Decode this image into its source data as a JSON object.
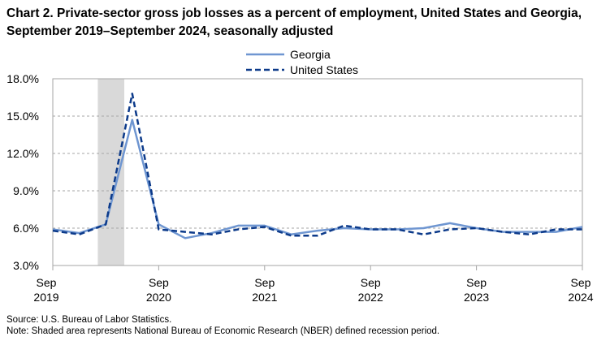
{
  "chart_data": {
    "type": "line",
    "title": "Chart 2. Private-sector gross job losses as a percent of employment, United States and Georgia, September 2019–September 2024, seasonally adjusted",
    "x": [
      "Sep 2019",
      "Dec 2019",
      "Mar 2020",
      "Jun 2020",
      "Sep 2020",
      "Dec 2020",
      "Mar 2021",
      "Jun 2021",
      "Sep 2021",
      "Dec 2021",
      "Mar 2022",
      "Jun 2022",
      "Sep 2022",
      "Dec 2022",
      "Mar 2023",
      "Jun 2023",
      "Sep 2023",
      "Dec 2023",
      "Mar 2024",
      "Jun 2024",
      "Sep 2024"
    ],
    "series": [
      {
        "name": "Georgia",
        "color": "#6f96d1",
        "style": "solid",
        "values": [
          5.9,
          5.6,
          6.3,
          14.7,
          6.3,
          5.2,
          5.6,
          6.2,
          6.2,
          5.5,
          5.8,
          6.0,
          5.9,
          5.9,
          6.0,
          6.4,
          6.0,
          5.7,
          5.7,
          5.7,
          6.1
        ]
      },
      {
        "name": "United States",
        "color": "#0c3a8a",
        "style": "dashed",
        "values": [
          5.8,
          5.5,
          6.3,
          16.8,
          5.9,
          5.7,
          5.5,
          5.9,
          6.1,
          5.4,
          5.4,
          6.2,
          5.9,
          5.9,
          5.5,
          5.9,
          6.0,
          5.7,
          5.5,
          5.9,
          5.9
        ]
      }
    ],
    "y_ticks": [
      "3.0%",
      "6.0%",
      "9.0%",
      "12.0%",
      "15.0%",
      "18.0%"
    ],
    "ylim": [
      3.0,
      18.0
    ],
    "x_tick_labels": [
      {
        "month": "Sep",
        "year": "2019",
        "index": 0
      },
      {
        "month": "Sep",
        "year": "2020",
        "index": 4
      },
      {
        "month": "Sep",
        "year": "2021",
        "index": 8
      },
      {
        "month": "Sep",
        "year": "2022",
        "index": 12
      },
      {
        "month": "Sep",
        "year": "2023",
        "index": 16
      },
      {
        "month": "Sep",
        "year": "2024",
        "index": 20
      }
    ],
    "recession": {
      "start_index": 1.7,
      "end_index": 2.7
    },
    "grid": "horizontal dashed",
    "legend_position": "top-center",
    "xlabel": "",
    "ylabel": ""
  },
  "notes": {
    "source": "Source: U.S. Bureau of Labor Statistics.",
    "shading": "Note: Shaded area represents National Bureau of Economic Research (NBER) defined recession period."
  }
}
